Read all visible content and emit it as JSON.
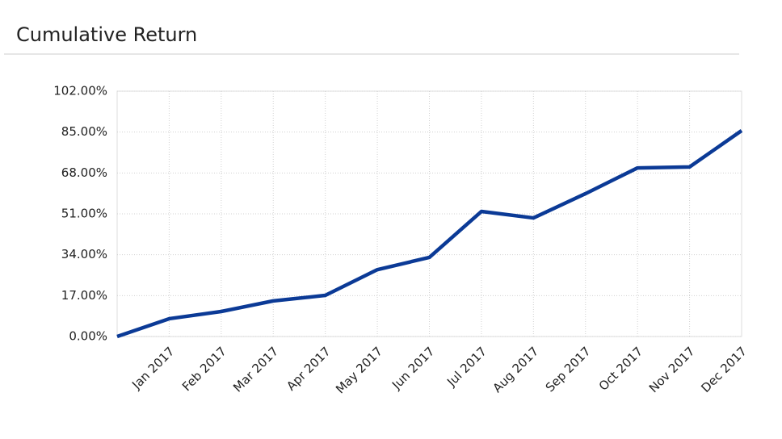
{
  "chart_data": {
    "type": "line",
    "title": "Cumulative Return",
    "categories": [
      null,
      "Jan 2017",
      "Feb 2017",
      "Mar 2017",
      "Apr 2017",
      "May 2017",
      "Jun 2017",
      "Jul 2017",
      "Aug 2017",
      "Sep 2017",
      "Oct 2017",
      "Nov 2017",
      "Dec 2017"
    ],
    "series": [
      {
        "color": "#0b3a96",
        "values": [
          0,
          7.4,
          10.4,
          14.8,
          17.1,
          27.8,
          32.9,
          52.0,
          49.3,
          59.4,
          70.1,
          70.5,
          85.6
        ]
      }
    ],
    "ylim": [
      0,
      102
    ],
    "yticks": [
      {
        "value": 0,
        "label": "0.00%"
      },
      {
        "value": 17,
        "label": "17.00%"
      },
      {
        "value": 34,
        "label": "34.00%"
      },
      {
        "value": 51,
        "label": "51.00%"
      },
      {
        "value": 68,
        "label": "68.00%"
      },
      {
        "value": 85,
        "label": "85.00%"
      },
      {
        "value": 102,
        "label": "102.00%"
      }
    ],
    "grid": true
  }
}
